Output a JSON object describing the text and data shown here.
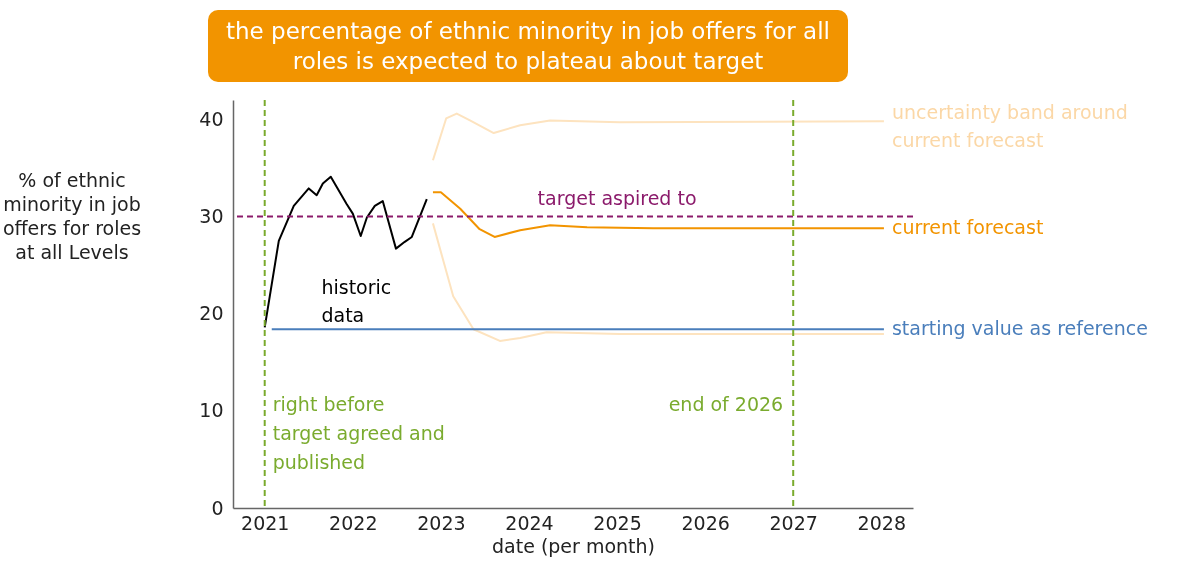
{
  "chart_data": {
    "type": "line",
    "title": "the percentage of ethnic minority in job offers for all roles is expected to plateau about target",
    "xlabel": "date (per month)",
    "ylabel": "% of ethnic minority in job offers for roles at all Levels",
    "xlim": [
      2020.64,
      2028.36
    ],
    "ylim": [
      0,
      42
    ],
    "xticks": [
      2021,
      2022,
      2023,
      2024,
      2025,
      2026,
      2027,
      2028
    ],
    "yticks": [
      0,
      10,
      20,
      30,
      40
    ],
    "grid": false,
    "marker": "none",
    "line_style": "solid",
    "series": [
      {
        "name": "historic data",
        "color": "#000000",
        "x": [
          2021.0,
          2021.16,
          2021.33,
          2021.5,
          2021.59,
          2021.66,
          2021.75,
          2021.93,
          2022.0,
          2022.09,
          2022.16,
          2022.25,
          2022.34,
          2022.49,
          2022.59,
          2022.67,
          2022.84
        ],
        "values": [
          18.6,
          27.5,
          31.1,
          32.9,
          32.2,
          33.4,
          34.1,
          31.3,
          30.3,
          28.0,
          29.9,
          31.1,
          31.6,
          26.7,
          27.4,
          27.9,
          31.8
        ]
      },
      {
        "name": "current forecast",
        "color": "#f29400",
        "x": [
          2022.91,
          2023.0,
          2023.22,
          2023.44,
          2023.61,
          2023.9,
          2024.24,
          2024.66,
          2025.41,
          2028.03
        ],
        "values": [
          32.5,
          32.5,
          30.8,
          28.7,
          27.9,
          28.6,
          29.1,
          28.9,
          28.8,
          28.8
        ]
      },
      {
        "type": "line",
        "color": "#fde3bf",
        "x": [
          2022.91,
          2023.06,
          2023.18,
          2023.33,
          2023.6,
          2023.9,
          2024.24,
          2025.03,
          2028.03
        ],
        "values": [
          35.8,
          40.1,
          40.6,
          39.9,
          38.6,
          39.4,
          39.9,
          39.7,
          39.8
        ]
      },
      {
        "type": "line",
        "color": "#fde3bf",
        "x": [
          2022.91,
          2023.14,
          2023.37,
          2023.67,
          2023.9,
          2024.2,
          2025.03,
          2028.03
        ],
        "values": [
          29.3,
          21.8,
          18.4,
          17.2,
          17.5,
          18.1,
          17.9,
          17.9
        ]
      },
      {
        "name": "starting value as reference",
        "color": "#4a7ebb",
        "x": [
          2021.08,
          2028.03
        ],
        "values": [
          18.4,
          18.4
        ]
      }
    ],
    "ref_lines": [
      {
        "axis": "y",
        "value": 30,
        "label": "target aspired to",
        "color": "#8b1a6b",
        "line_style": "dashed"
      },
      {
        "axis": "x",
        "value": 2021,
        "label": "right before target agreed and published",
        "color": "#7aab2e",
        "line_style": "dashed"
      },
      {
        "axis": "x",
        "value": 2027,
        "label": "end of 2026",
        "color": "#7aab2e",
        "line_style": "dashed"
      }
    ],
    "annotations": [
      {
        "text": "uncertainty band around current forecast",
        "x": 2028.03,
        "y": 39.8
      }
    ]
  }
}
